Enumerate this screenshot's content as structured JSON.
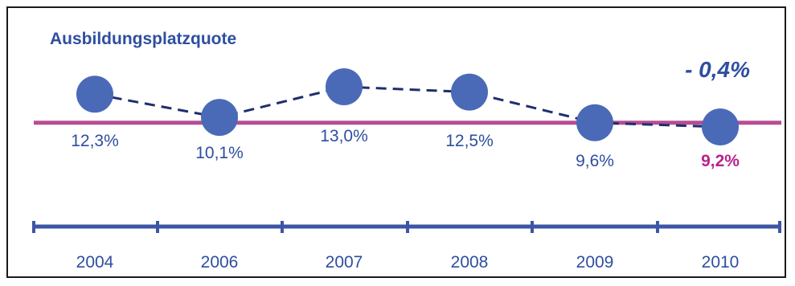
{
  "chart_data": {
    "type": "line",
    "title": "Ausbildungsplatzquote",
    "annotation": "- 0,4%",
    "categories": [
      "2004",
      "2006",
      "2007",
      "2008",
      "2009",
      "2010"
    ],
    "series": [
      {
        "values": [
          12.3,
          10.1,
          13.0,
          12.5,
          9.6,
          9.2
        ],
        "labels": [
          "12,3%",
          "10,1%",
          "13,0%",
          "12,5%",
          "9,6%",
          "9,2%"
        ]
      }
    ],
    "reference_line": 9.6,
    "highlight_last": true,
    "colors": {
      "title": "#2e4ea0",
      "marker": "#4a6ab8",
      "line": "#1f2e6e",
      "reference": "#b84d94",
      "axis": "#3d55a5",
      "label": "#2e4ea0",
      "highlight": "#b8238f"
    }
  }
}
